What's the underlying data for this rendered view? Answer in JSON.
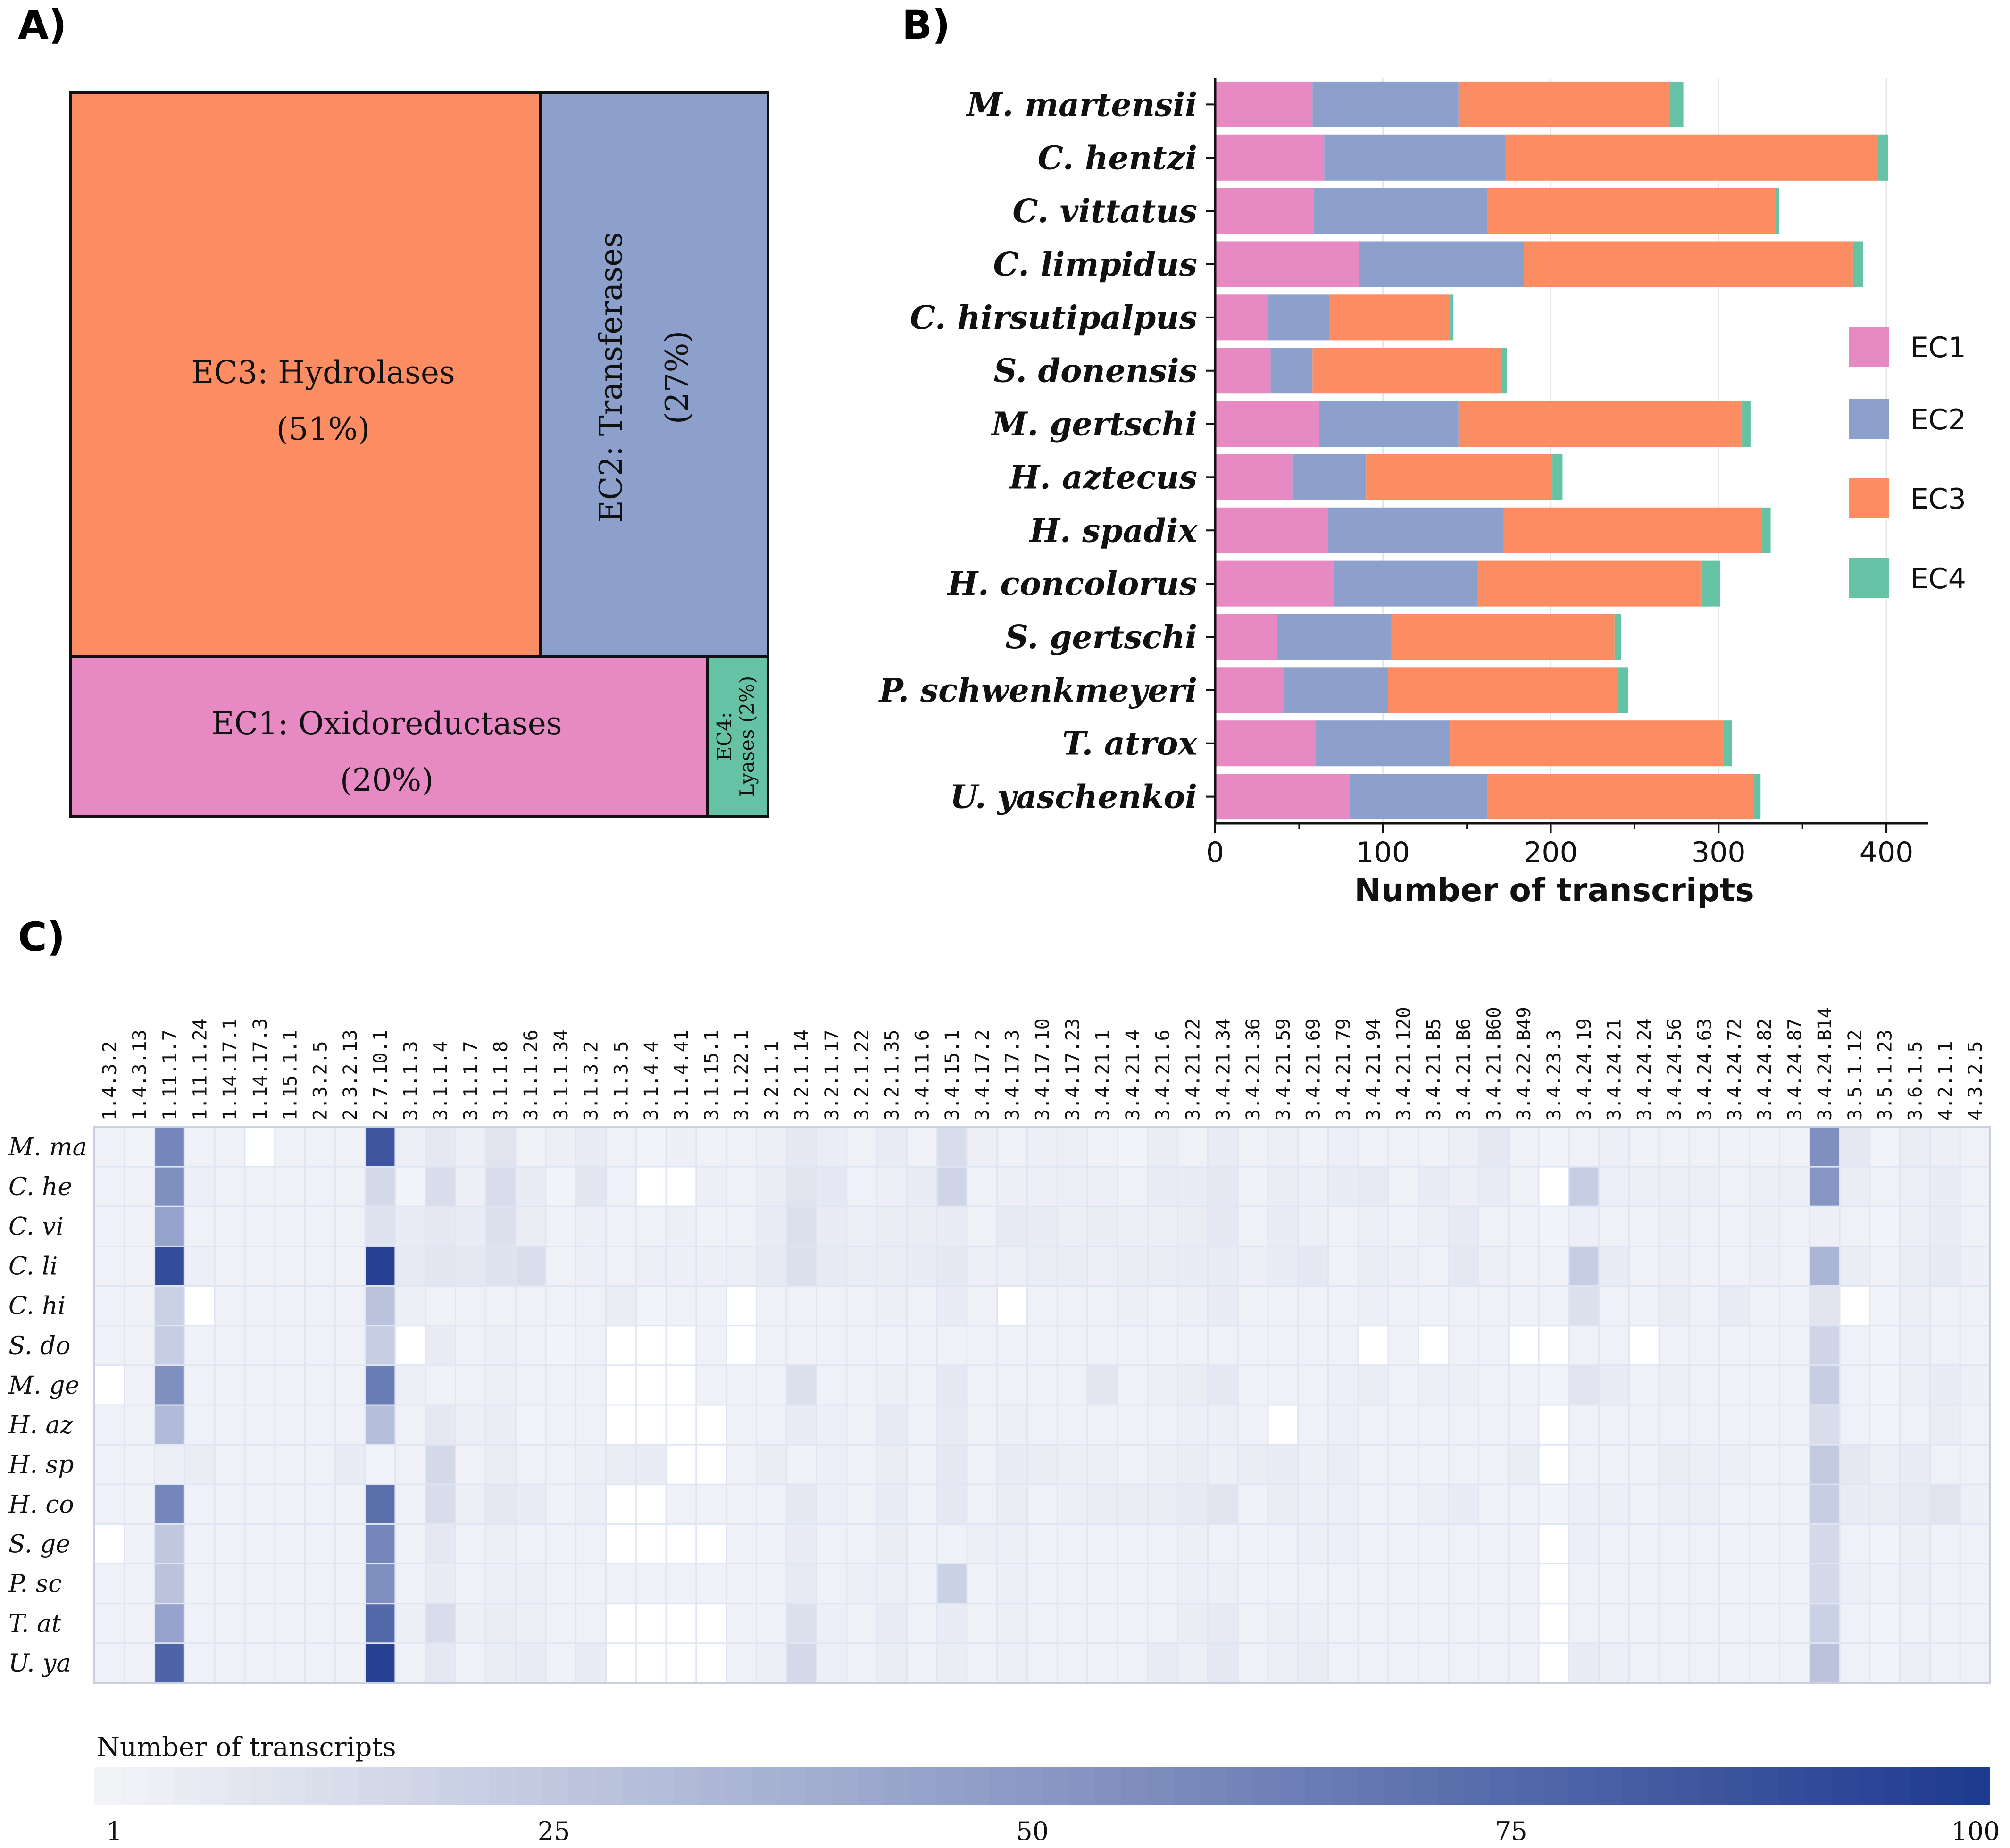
{
  "panels": {
    "a": "A)",
    "b": "B)",
    "c": "C)"
  },
  "colors": {
    "EC1": "#e78ac3",
    "EC2": "#8da0cb",
    "EC3": "#fc8d62",
    "EC4": "#66c2a5"
  },
  "chart_data": [
    {
      "type": "treemap",
      "panel": "A)",
      "items": [
        {
          "key": "EC3",
          "label": "EC3: Hydrolases",
          "pct_label": "(51%)",
          "value": 51
        },
        {
          "key": "EC2",
          "label": "EC2: Transferases",
          "pct_label": "(27%)",
          "value": 27
        },
        {
          "key": "EC1",
          "label": "EC1: Oxidoreductases",
          "pct_label": "(20%)",
          "value": 20
        },
        {
          "key": "EC4",
          "label": "EC4:",
          "label2": "Lyases (2%)",
          "value": 2
        }
      ]
    },
    {
      "type": "bar",
      "orientation": "horizontal",
      "stacked": true,
      "panel": "B)",
      "categories": [
        "M. martensii",
        "C. hentzi",
        "C. vittatus",
        "C. limpidus",
        "C. hirsutipalpus",
        "S. donensis",
        "M. gertschi",
        "H. aztecus",
        "H. spadix",
        "H. concolorus",
        "S. gertschi",
        "P. schwenkmeyeri",
        "T. atrox",
        "U. yaschenkoi"
      ],
      "series": [
        {
          "name": "EC1",
          "values": [
            58,
            65,
            59,
            86,
            31,
            33,
            62,
            46,
            67,
            71,
            37,
            41,
            60,
            80
          ]
        },
        {
          "name": "EC2",
          "values": [
            87,
            108,
            103,
            98,
            37,
            25,
            83,
            44,
            105,
            85,
            68,
            62,
            80,
            82
          ]
        },
        {
          "name": "EC3",
          "values": [
            126,
            222,
            172,
            196,
            72,
            113,
            169,
            111,
            154,
            134,
            133,
            137,
            163,
            159
          ]
        },
        {
          "name": "EC4",
          "values": [
            8,
            6,
            2,
            6,
            2,
            3,
            5,
            6,
            5,
            11,
            4,
            6,
            5,
            4
          ]
        }
      ],
      "legend": [
        "EC1",
        "EC2",
        "EC3",
        "EC4"
      ],
      "legend_position": "right",
      "xlabel": "Number  of transcripts",
      "xlim": [
        0,
        425
      ],
      "xticks": [
        0,
        100,
        200,
        300,
        400
      ]
    },
    {
      "type": "heatmap",
      "panel": "C)",
      "columns": [
        "1.4.3.2",
        "1.4.3.13",
        "1.11.1.7",
        "1.11.1.24",
        "1.14.17.1",
        "1.14.17.3",
        "1.15.1.1",
        "2.3.2.5",
        "2.3.2.13",
        "2.7.10.1",
        "3.1.1.3",
        "3.1.1.4",
        "3.1.1.7",
        "3.1.1.8",
        "3.1.1.26",
        "3.1.1.34",
        "3.1.3.2",
        "3.1.3.5",
        "3.1.4.4",
        "3.1.4.41",
        "3.1.15.1",
        "3.1.22.1",
        "3.2.1.1",
        "3.2.1.14",
        "3.2.1.17",
        "3.2.1.22",
        "3.2.1.35",
        "3.4.11.6",
        "3.4.15.1",
        "3.4.17.2",
        "3.4.17.3",
        "3.4.17.10",
        "3.4.17.23",
        "3.4.21.1",
        "3.4.21.4",
        "3.4.21.6",
        "3.4.21.22",
        "3.4.21.34",
        "3.4.21.36",
        "3.4.21.59",
        "3.4.21.69",
        "3.4.21.79",
        "3.4.21.94",
        "3.4.21.120",
        "3.4.21.B5",
        "3.4.21.B6",
        "3.4.21.B60",
        "3.4.22.B49",
        "3.4.23.3",
        "3.4.24.19",
        "3.4.24.21",
        "3.4.24.24",
        "3.4.24.56",
        "3.4.24.63",
        "3.4.24.72",
        "3.4.24.82",
        "3.4.24.87",
        "3.4.24.B14",
        "3.5.1.12",
        "3.5.1.23",
        "3.6.1.5",
        "4.2.1.1",
        "4.3.2.5"
      ],
      "rows": [
        "M. ma",
        "C. he",
        "C. vi",
        "C. li",
        "C. hi",
        "S. do",
        "M. ge",
        "H. az",
        "H. sp",
        "H. co",
        "S. ge",
        "P. sc",
        "T. at",
        "U. ya"
      ],
      "colorbar": {
        "title": "Number of transcripts",
        "min": 1,
        "max": 100,
        "ticks": [
          "1",
          "25",
          "50",
          "75",
          "100"
        ],
        "low_color": "#f4f5f9",
        "high_color": "#1e3a8f"
      },
      "values": [
        [
          3,
          2,
          60,
          3,
          3,
          0,
          3,
          3,
          3,
          85,
          4,
          8,
          4,
          10,
          3,
          4,
          6,
          3,
          2,
          4,
          3,
          3,
          4,
          8,
          5,
          3,
          6,
          3,
          14,
          4,
          3,
          4,
          4,
          3,
          2,
          5,
          3,
          6,
          3,
          4,
          3,
          4,
          3,
          3,
          3,
          4,
          8,
          3,
          2,
          3,
          4,
          3,
          3,
          3,
          3,
          3,
          3,
          55,
          8,
          2,
          5,
          4,
          3
        ],
        [
          3,
          3,
          55,
          4,
          3,
          3,
          3,
          3,
          3,
          16,
          2,
          14,
          4,
          14,
          6,
          2,
          9,
          3,
          0,
          0,
          4,
          3,
          5,
          10,
          8,
          3,
          4,
          6,
          18,
          3,
          4,
          4,
          4,
          4,
          3,
          6,
          6,
          8,
          3,
          5,
          4,
          6,
          7,
          3,
          6,
          4,
          6,
          3,
          0,
          22,
          4,
          4,
          4,
          4,
          3,
          4,
          4,
          52,
          5,
          3,
          4,
          6,
          3
        ],
        [
          3,
          3,
          45,
          3,
          3,
          3,
          3,
          3,
          3,
          11,
          6,
          8,
          6,
          12,
          5,
          3,
          4,
          3,
          3,
          4,
          3,
          3,
          6,
          12,
          6,
          4,
          5,
          5,
          6,
          3,
          7,
          6,
          4,
          5,
          4,
          4,
          5,
          8,
          3,
          6,
          4,
          3,
          4,
          3,
          4,
          7,
          3,
          3,
          2,
          4,
          3,
          3,
          4,
          3,
          3,
          4,
          3,
          4,
          3,
          2,
          4,
          6,
          3
        ],
        [
          3,
          3,
          90,
          4,
          3,
          3,
          3,
          3,
          3,
          96,
          7,
          9,
          8,
          11,
          13,
          3,
          4,
          3,
          4,
          4,
          4,
          4,
          7,
          12,
          7,
          5,
          5,
          6,
          8,
          4,
          4,
          5,
          5,
          4,
          5,
          5,
          6,
          6,
          4,
          6,
          8,
          3,
          5,
          4,
          3,
          8,
          4,
          3,
          3,
          22,
          6,
          3,
          4,
          3,
          3,
          4,
          3,
          35,
          5,
          3,
          5,
          7,
          4
        ],
        [
          3,
          3,
          20,
          0,
          3,
          3,
          3,
          3,
          3,
          28,
          4,
          3,
          3,
          3,
          3,
          3,
          3,
          5,
          2,
          3,
          3,
          0,
          3,
          3,
          3,
          3,
          4,
          3,
          6,
          3,
          0,
          3,
          3,
          3,
          4,
          3,
          4,
          6,
          3,
          3,
          3,
          3,
          4,
          3,
          3,
          3,
          3,
          3,
          3,
          12,
          3,
          3,
          5,
          3,
          6,
          3,
          3,
          10,
          0,
          2,
          4,
          3,
          3
        ],
        [
          3,
          3,
          22,
          3,
          3,
          3,
          3,
          3,
          3,
          22,
          0,
          6,
          3,
          4,
          3,
          2,
          3,
          0,
          0,
          0,
          3,
          0,
          3,
          3,
          3,
          3,
          3,
          3,
          3,
          3,
          3,
          3,
          3,
          3,
          3,
          3,
          3,
          3,
          3,
          3,
          3,
          3,
          0,
          3,
          0,
          3,
          3,
          0,
          0,
          3,
          3,
          0,
          3,
          3,
          3,
          3,
          3,
          18,
          3,
          2,
          4,
          3,
          3
        ],
        [
          0,
          3,
          55,
          3,
          3,
          3,
          3,
          3,
          3,
          65,
          4,
          3,
          3,
          4,
          3,
          3,
          3,
          0,
          0,
          0,
          3,
          3,
          3,
          12,
          3,
          3,
          4,
          3,
          8,
          3,
          3,
          3,
          3,
          9,
          3,
          4,
          5,
          8,
          3,
          3,
          3,
          4,
          5,
          3,
          4,
          4,
          3,
          3,
          2,
          10,
          6,
          3,
          4,
          3,
          3,
          3,
          3,
          22,
          3,
          2,
          4,
          6,
          4
        ],
        [
          3,
          3,
          32,
          3,
          3,
          3,
          3,
          3,
          3,
          30,
          3,
          8,
          4,
          5,
          2,
          3,
          3,
          0,
          0,
          0,
          0,
          3,
          3,
          6,
          4,
          3,
          7,
          3,
          7,
          3,
          4,
          3,
          3,
          3,
          3,
          3,
          4,
          4,
          3,
          0,
          3,
          4,
          3,
          3,
          3,
          3,
          3,
          3,
          0,
          3,
          3,
          3,
          3,
          3,
          3,
          3,
          3,
          14,
          3,
          2,
          3,
          5,
          3
        ],
        [
          3,
          3,
          4,
          5,
          3,
          3,
          3,
          3,
          6,
          2,
          3,
          16,
          3,
          5,
          3,
          3,
          4,
          5,
          6,
          0,
          0,
          3,
          5,
          3,
          4,
          3,
          5,
          3,
          8,
          3,
          6,
          5,
          4,
          4,
          3,
          4,
          5,
          4,
          5,
          6,
          4,
          5,
          3,
          3,
          3,
          3,
          3,
          5,
          0,
          3,
          3,
          3,
          5,
          4,
          4,
          3,
          3,
          24,
          8,
          4,
          6,
          3,
          3
        ],
        [
          3,
          3,
          60,
          3,
          3,
          3,
          3,
          3,
          3,
          72,
          3,
          14,
          4,
          8,
          6,
          3,
          4,
          0,
          0,
          3,
          3,
          3,
          3,
          8,
          4,
          3,
          6,
          3,
          8,
          3,
          5,
          3,
          4,
          5,
          5,
          5,
          7,
          10,
          3,
          5,
          4,
          4,
          3,
          3,
          4,
          6,
          3,
          3,
          2,
          4,
          4,
          3,
          4,
          4,
          3,
          3,
          3,
          22,
          6,
          5,
          7,
          10,
          4
        ],
        [
          0,
          3,
          25,
          3,
          3,
          3,
          3,
          3,
          3,
          60,
          3,
          8,
          3,
          4,
          3,
          3,
          3,
          0,
          0,
          0,
          0,
          3,
          3,
          6,
          3,
          3,
          5,
          3,
          3,
          4,
          4,
          3,
          3,
          3,
          3,
          3,
          4,
          3,
          3,
          3,
          4,
          4,
          3,
          3,
          3,
          3,
          3,
          3,
          0,
          4,
          3,
          3,
          3,
          3,
          3,
          3,
          3,
          16,
          3,
          2,
          4,
          3,
          3
        ],
        [
          3,
          3,
          28,
          3,
          3,
          3,
          3,
          3,
          3,
          55,
          3,
          6,
          3,
          4,
          4,
          3,
          3,
          3,
          3,
          3,
          3,
          3,
          3,
          7,
          3,
          4,
          4,
          3,
          20,
          3,
          4,
          3,
          3,
          3,
          3,
          3,
          4,
          4,
          3,
          3,
          3,
          3,
          3,
          3,
          3,
          3,
          3,
          3,
          0,
          3,
          3,
          3,
          3,
          3,
          3,
          3,
          3,
          16,
          4,
          3,
          4,
          3,
          3
        ],
        [
          3,
          3,
          45,
          3,
          3,
          3,
          3,
          3,
          3,
          75,
          4,
          14,
          4,
          5,
          4,
          3,
          3,
          0,
          0,
          0,
          0,
          3,
          3,
          12,
          4,
          3,
          6,
          3,
          6,
          3,
          4,
          3,
          3,
          3,
          3,
          3,
          5,
          7,
          3,
          4,
          4,
          3,
          3,
          3,
          3,
          3,
          3,
          3,
          0,
          3,
          3,
          3,
          3,
          3,
          3,
          3,
          3,
          20,
          3,
          2,
          3,
          3,
          3
        ],
        [
          3,
          3,
          78,
          3,
          3,
          3,
          3,
          3,
          3,
          96,
          3,
          8,
          3,
          5,
          6,
          3,
          6,
          0,
          0,
          0,
          0,
          3,
          4,
          16,
          4,
          3,
          5,
          3,
          5,
          3,
          4,
          3,
          3,
          3,
          3,
          6,
          4,
          8,
          3,
          4,
          5,
          3,
          3,
          3,
          3,
          3,
          3,
          3,
          0,
          6,
          4,
          3,
          3,
          3,
          3,
          3,
          3,
          28,
          3,
          2,
          4,
          3,
          3
        ]
      ]
    }
  ]
}
